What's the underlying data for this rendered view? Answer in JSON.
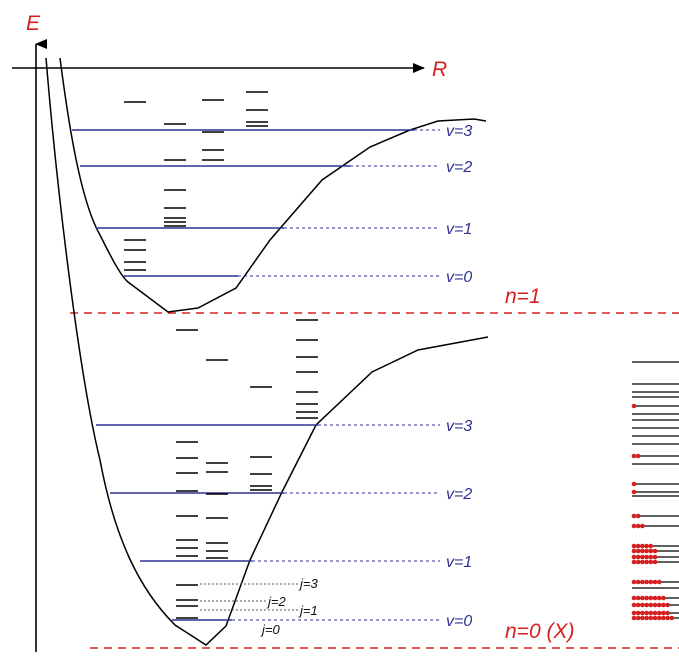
{
  "axes": {
    "energy_label": "E",
    "distance_label": "R"
  },
  "upper_state": {
    "label": "n=1",
    "vibrational_levels": [
      "v=0",
      "v=1",
      "v=2",
      "v=3"
    ]
  },
  "lower_state": {
    "label": "n=0 (X)",
    "vibrational_levels": [
      "v=0",
      "v=1",
      "v=2",
      "v=3"
    ],
    "rotational_levels": [
      "j=0",
      "j=1",
      "j=2",
      "j=3"
    ]
  },
  "colors": {
    "axis_labels": "#d42020",
    "state_dividers": "#d42020",
    "vibrational_lines": "#2e3192",
    "potential_curves": "#000000",
    "rotational_ticks": "#000000",
    "population_dots": "#d42020"
  }
}
